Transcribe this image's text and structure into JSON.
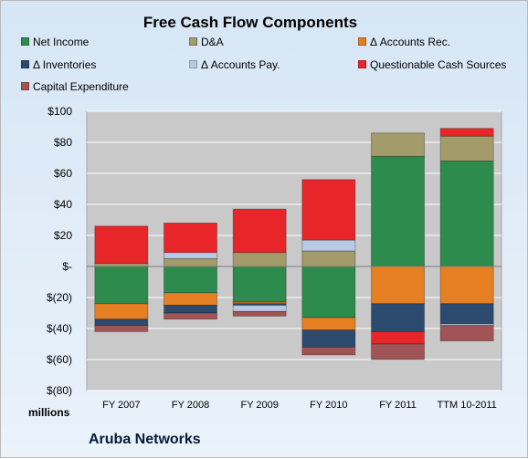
{
  "chart_data": {
    "type": "bar",
    "stacked": true,
    "title": "Free Cash Flow Components",
    "units_label": "millions",
    "company": "Aruba Networks",
    "categories": [
      "FY 2007",
      "FY 2008",
      "FY 2009",
      "FY 2010",
      "FY 2011",
      "TTM 10-2011"
    ],
    "ylim": [
      -80,
      100
    ],
    "y_ticks": [
      {
        "value": 100,
        "label": "$100"
      },
      {
        "value": 80,
        "label": "$80"
      },
      {
        "value": 60,
        "label": "$60"
      },
      {
        "value": 40,
        "label": "$40"
      },
      {
        "value": 20,
        "label": "$20"
      },
      {
        "value": 0,
        "label": "$-"
      },
      {
        "value": -20,
        "label": "$(20)"
      },
      {
        "value": -40,
        "label": "$(40)"
      },
      {
        "value": -60,
        "label": "$(60)"
      },
      {
        "value": -80,
        "label": "$(80)"
      }
    ],
    "grid": true,
    "legend_position": "top",
    "series": [
      {
        "name": "Net Income",
        "color": "#2e8b4e",
        "values": [
          -24,
          -17,
          -23,
          -33,
          71,
          68
        ]
      },
      {
        "name": "D&A",
        "color": "#a39b6a",
        "values": [
          2,
          5,
          9,
          10,
          15,
          16
        ]
      },
      {
        "name": "Δ Accounts Rec.",
        "color": "#e67e22",
        "values": [
          -10,
          -8,
          -1,
          -8,
          -24,
          -24
        ]
      },
      {
        "name": "Δ Inventories",
        "color": "#2c4a6e",
        "values": [
          -4,
          -5,
          -1,
          -11,
          -18,
          -13
        ]
      },
      {
        "name": "Δ Accounts Pay.",
        "color": "#b9cbe4",
        "values": [
          0,
          4,
          -4,
          7,
          0,
          -1
        ]
      },
      {
        "name": "Questionable Cash Sources",
        "color": "#e8262a",
        "values": [
          24,
          19,
          28,
          39,
          -8,
          5
        ]
      },
      {
        "name": "Capital Expenditure",
        "color": "#a05455",
        "values": [
          -4,
          -4,
          -3,
          -5,
          -10,
          -10
        ]
      }
    ]
  }
}
